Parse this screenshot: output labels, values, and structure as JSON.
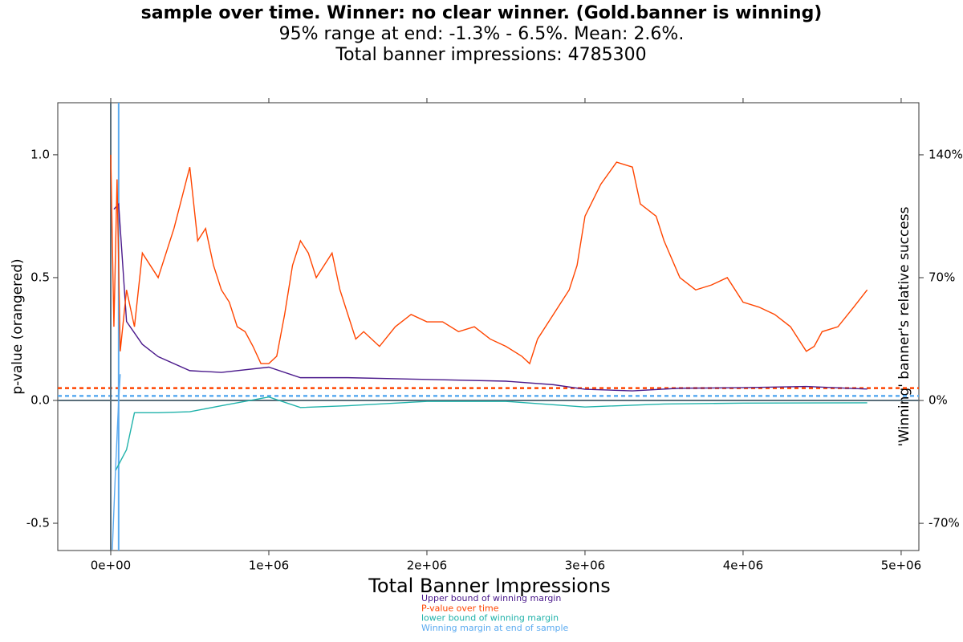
{
  "chart_data": {
    "type": "line",
    "title": "sample over time. Winner: no clear winner. (Gold.banner is winning)",
    "subtitle": "95% range at end: -1.3% - 6.5%. Mean: 2.6%.",
    "subtitle2": "Total banner impressions: 4785300",
    "xlabel": "Total Banner Impressions",
    "ylabel": "p-value (orangered)",
    "y2label": "'Winning' banner's relative success",
    "xlim": [
      -335000,
      5112000
    ],
    "ylim": [
      -0.611,
      1.212
    ],
    "y2lim": [
      -85.5,
      169.7
    ],
    "xticks": [
      {
        "value": 0,
        "label": "0e+00"
      },
      {
        "value": 1000000,
        "label": "1e+06"
      },
      {
        "value": 2000000,
        "label": "2e+06"
      },
      {
        "value": 3000000,
        "label": "3e+06"
      },
      {
        "value": 4000000,
        "label": "4e+06"
      },
      {
        "value": 5000000,
        "label": "5e+06"
      }
    ],
    "yticks": [
      {
        "value": -0.5,
        "label": "-0.5"
      },
      {
        "value": 0,
        "label": "0.0"
      },
      {
        "value": 0.5,
        "label": "0.5"
      },
      {
        "value": 1,
        "label": "1.0"
      }
    ],
    "y2ticks": [
      {
        "value": -70,
        "label": "-70%"
      },
      {
        "value": 0,
        "label": "0%"
      },
      {
        "value": 70,
        "label": "70%"
      },
      {
        "value": 140,
        "label": "140%"
      }
    ],
    "reference_lines": [
      {
        "axis": "y",
        "value": 0,
        "color": "#5a6e7a",
        "dash": false
      },
      {
        "axis": "y",
        "value": 0.05,
        "color": "#ff4500",
        "dash": true
      },
      {
        "axis": "y2",
        "value": 2.6,
        "color": "#5aaaf0",
        "dash": true
      },
      {
        "axis": "x",
        "value": 0,
        "color": "#5a6e7a",
        "dash": false
      },
      {
        "axis": "x",
        "value": 50000,
        "color": "#5aaaf0",
        "dash": false
      }
    ],
    "series": [
      {
        "name": "Upper bound of winning margin",
        "color": "#4b1a8c",
        "axis": "y2",
        "x": [
          20000,
          50000,
          100000,
          200000,
          300000,
          500000,
          700000,
          1000000,
          1200000,
          1500000,
          2000000,
          2500000,
          2800000,
          3000000,
          3300000,
          3600000,
          4000000,
          4400000,
          4785300
        ],
        "values": [
          109,
          112,
          45,
          32,
          25,
          17,
          16,
          19,
          13,
          13,
          12,
          11,
          9,
          6.4,
          5.5,
          7,
          7.3,
          8,
          6.5
        ]
      },
      {
        "name": "P-value over time",
        "color": "#ff4500",
        "axis": "y",
        "x": [
          0,
          20000,
          40000,
          60000,
          100000,
          150000,
          200000,
          300000,
          400000,
          500000,
          550000,
          600000,
          650000,
          700000,
          750000,
          800000,
          850000,
          900000,
          950000,
          1000000,
          1050000,
          1100000,
          1150000,
          1200000,
          1250000,
          1300000,
          1350000,
          1400000,
          1450000,
          1500000,
          1550000,
          1600000,
          1700000,
          1800000,
          1900000,
          2000000,
          2100000,
          2200000,
          2300000,
          2400000,
          2500000,
          2600000,
          2650000,
          2700000,
          2800000,
          2900000,
          2950000,
          3000000,
          3100000,
          3200000,
          3300000,
          3350000,
          3450000,
          3500000,
          3600000,
          3700000,
          3800000,
          3900000,
          4000000,
          4100000,
          4200000,
          4300000,
          4400000,
          4450000,
          4500000,
          4600000,
          4700000,
          4785300
        ],
        "values": [
          1.0,
          0.3,
          0.9,
          0.2,
          0.45,
          0.3,
          0.6,
          0.5,
          0.7,
          0.95,
          0.65,
          0.7,
          0.55,
          0.45,
          0.4,
          0.3,
          0.28,
          0.22,
          0.15,
          0.15,
          0.18,
          0.35,
          0.55,
          0.65,
          0.6,
          0.5,
          0.55,
          0.6,
          0.45,
          0.35,
          0.25,
          0.28,
          0.22,
          0.3,
          0.35,
          0.32,
          0.32,
          0.28,
          0.3,
          0.25,
          0.22,
          0.18,
          0.15,
          0.25,
          0.35,
          0.45,
          0.55,
          0.75,
          0.88,
          0.97,
          0.95,
          0.8,
          0.75,
          0.65,
          0.5,
          0.45,
          0.47,
          0.5,
          0.4,
          0.38,
          0.35,
          0.3,
          0.2,
          0.22,
          0.28,
          0.3,
          0.38,
          0.45
        ]
      },
      {
        "name": "lower bound of winning margin",
        "color": "#20b2aa",
        "axis": "y2",
        "x": [
          30000,
          100000,
          150000,
          300000,
          500000,
          700000,
          1000000,
          1200000,
          1500000,
          2000000,
          2500000,
          3000000,
          3500000,
          4000000,
          4785300
        ],
        "values": [
          -40,
          -28,
          -7,
          -7,
          -6.4,
          -3,
          2,
          -4,
          -3,
          -0.5,
          -0.5,
          -3.7,
          -2,
          -1.5,
          -1.3
        ]
      },
      {
        "name": "Winning margin at end of sample",
        "color": "#5aaaf0",
        "axis": "y2",
        "x": [
          10000,
          30000,
          50000,
          60000
        ],
        "values": [
          -85,
          -40,
          0,
          15
        ]
      }
    ]
  }
}
